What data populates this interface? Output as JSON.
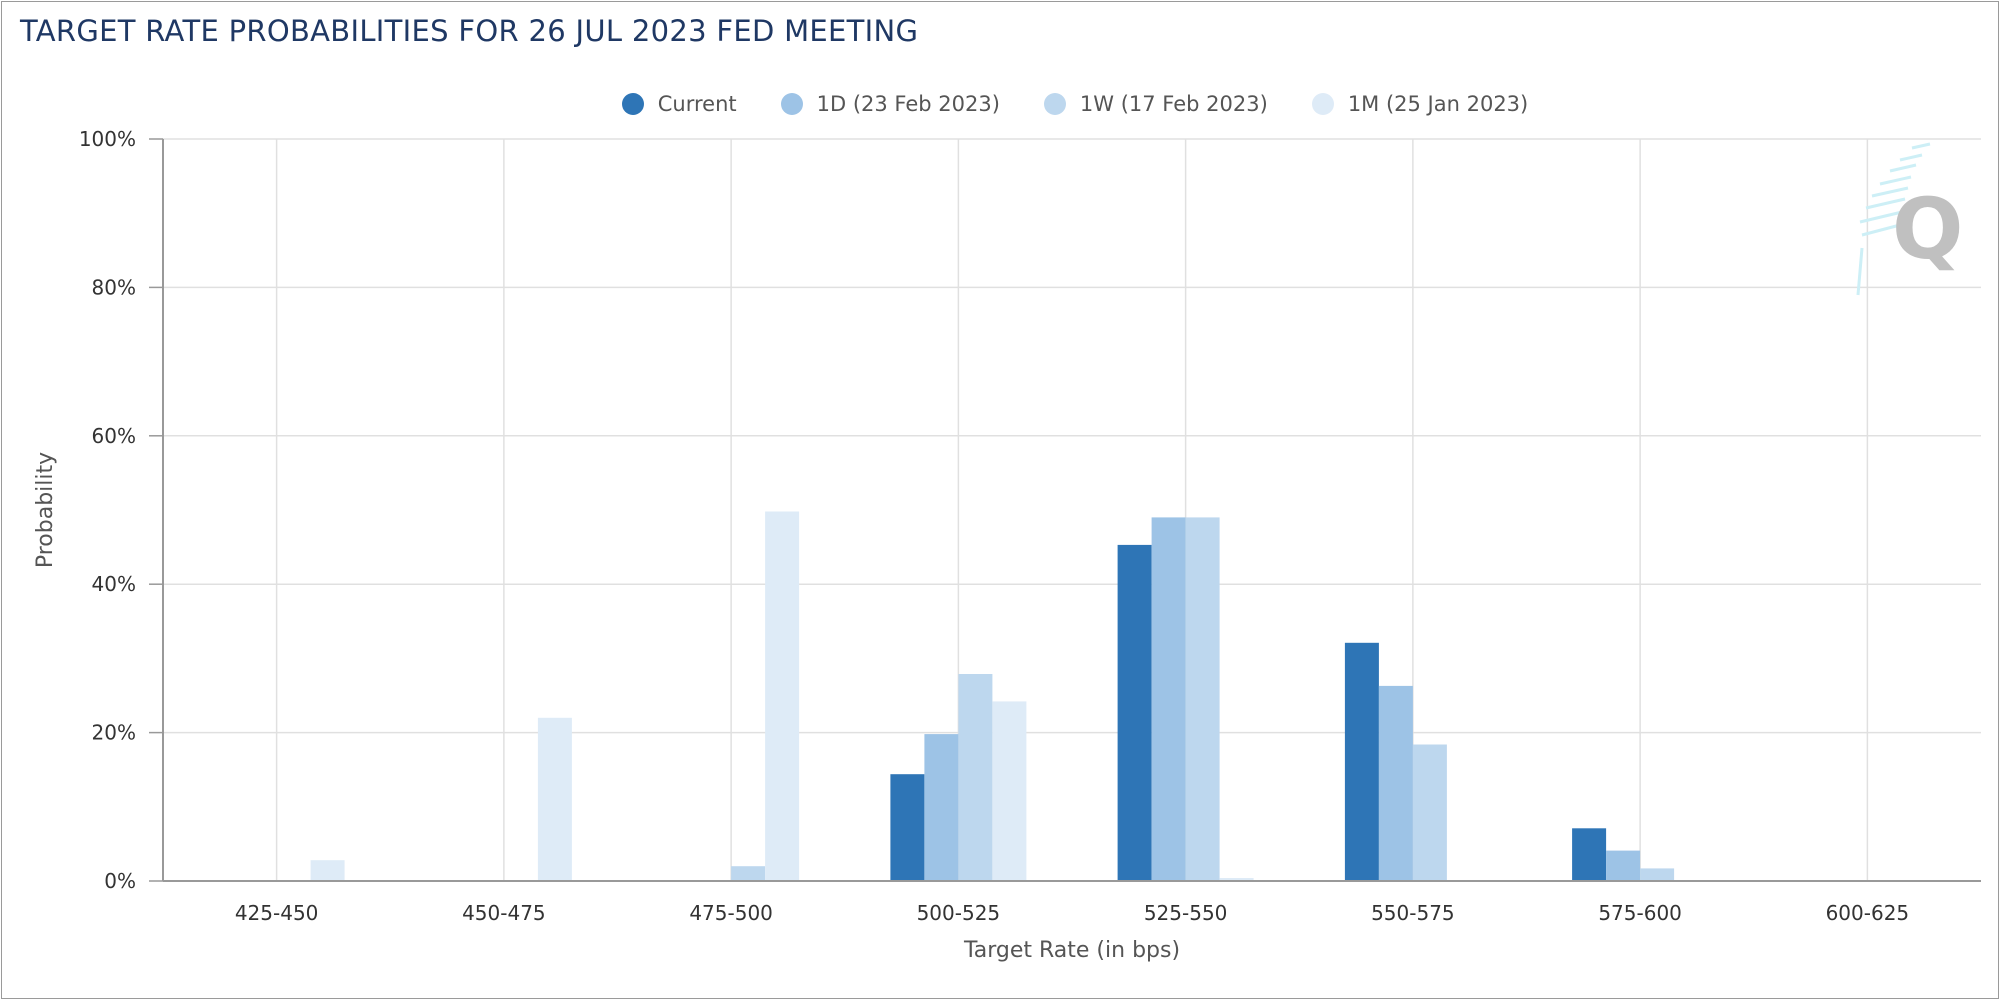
{
  "title": "TARGET RATE PROBABILITIES FOR 26 JUL 2023 FED MEETING",
  "chart_data": {
    "type": "bar",
    "title": "TARGET RATE PROBABILITIES FOR 26 JUL 2023 FED MEETING",
    "xlabel": "Target Rate (in bps)",
    "ylabel": "Probability",
    "ylim": [
      0,
      100
    ],
    "y_ticks": [
      "0%",
      "20%",
      "40%",
      "60%",
      "80%",
      "100%"
    ],
    "y_tick_values": [
      0,
      20,
      40,
      60,
      80,
      100
    ],
    "grid": true,
    "legend_position": "top-center",
    "categories": [
      "425-450",
      "450-475",
      "475-500",
      "500-525",
      "525-550",
      "550-575",
      "575-600",
      "600-625"
    ],
    "series": [
      {
        "name": "Current",
        "color": "#2e75b6",
        "values": [
          0,
          0,
          0,
          14.4,
          45.3,
          32.1,
          7.1,
          0
        ]
      },
      {
        "name": "1D (23 Feb 2023)",
        "color": "#9dc3e6",
        "values": [
          0,
          0,
          0,
          19.8,
          49.0,
          26.3,
          4.1,
          0
        ]
      },
      {
        "name": "1W (17 Feb 2023)",
        "color": "#bdd7ee",
        "values": [
          0,
          0,
          2.0,
          27.9,
          49.0,
          18.4,
          1.7,
          0
        ]
      },
      {
        "name": "1M (25 Jan 2023)",
        "color": "#deebf7",
        "values": [
          2.8,
          22.0,
          49.8,
          24.2,
          0.4,
          0,
          0,
          0
        ]
      }
    ]
  }
}
